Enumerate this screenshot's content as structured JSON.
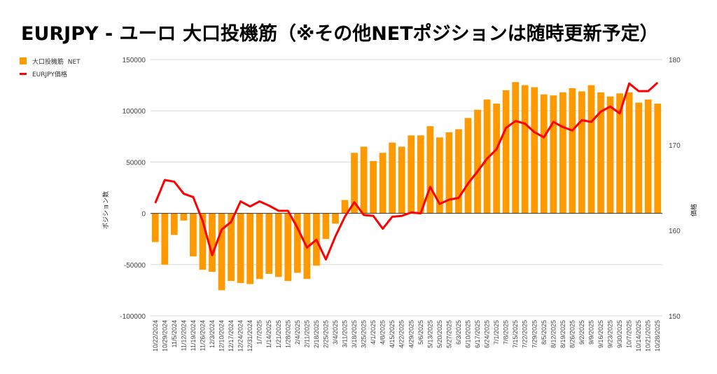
{
  "chart_data": {
    "type": "bar+line",
    "title": "EURJPY - ユーロ 大口投機筋（※その他NETポジションは随時更新予定）",
    "ylabel_left": "ポジション数",
    "ylabel_right": "価格",
    "ylim_left": [
      -100000,
      150000
    ],
    "ylim_right": [
      150,
      180
    ],
    "yticks_left": [
      "150000",
      "100000",
      "50000",
      "0",
      "-50000",
      "-100000"
    ],
    "yticks_right": [
      "180",
      "170",
      "160",
      "150"
    ],
    "grid": true,
    "legend_position": "top-left",
    "categories": [
      "10/22/2024",
      "10/29/2024",
      "11/5/2024",
      "11/12/2024",
      "11/19/2024",
      "11/26/2024",
      "12/3/2024",
      "12/10/2024",
      "12/17/2024",
      "12/24/2024",
      "12/31/2024",
      "1/7/2025",
      "1/14/2025",
      "1/21/2025",
      "1/28/2025",
      "2/4/2025",
      "2/11/2025",
      "2/18/2025",
      "2/25/2025",
      "3/4/2025",
      "3/11/2025",
      "3/18/2025",
      "3/25/2025",
      "4/1/2025",
      "4/8/2025",
      "4/15/2025",
      "4/22/2025",
      "4/29/2025",
      "5/6/2025",
      "5/13/2025",
      "5/20/2025",
      "5/27/2025",
      "6/3/2025",
      "6/10/2025",
      "6/17/2025",
      "6/24/2025",
      "7/1/2025",
      "7/8/2025",
      "7/15/2025",
      "7/22/2025",
      "7/29/2025",
      "8/5/2025",
      "8/12/2025",
      "8/19/2025",
      "8/26/2025",
      "9/2/2025",
      "9/9/2025",
      "9/16/2025",
      "9/23/2025",
      "9/30/2025",
      "10/7/2025",
      "10/14/2025",
      "10/21/2025",
      "10/28/2025"
    ],
    "series": [
      {
        "name": "大口投機筋  NET",
        "type": "bar",
        "axis": "left",
        "color": "#ff9900",
        "values": [
          -28000,
          -50000,
          -21000,
          -7000,
          -42000,
          -55000,
          -57000,
          -75000,
          -66000,
          -68000,
          -69000,
          -64000,
          -59000,
          -62000,
          -66000,
          -58000,
          -64000,
          -51000,
          -25000,
          -10000,
          13000,
          59000,
          65000,
          51000,
          59000,
          69000,
          65000,
          76000,
          76000,
          85000,
          74000,
          79000,
          82000,
          93000,
          101000,
          111000,
          107000,
          120000,
          128000,
          125000,
          123000,
          116000,
          115000,
          118000,
          122000,
          119000,
          125000,
          118000,
          114000,
          117000,
          118000,
          108000,
          111000,
          107000
        ]
      },
      {
        "name": "EURJPY価格",
        "type": "line",
        "axis": "right",
        "color": "#ff0000",
        "values": [
          163.2,
          165.9,
          165.7,
          164.3,
          163.9,
          161.1,
          157.1,
          160.1,
          161.0,
          163.4,
          162.8,
          163.4,
          162.9,
          162.3,
          162.3,
          160.3,
          158.0,
          158.9,
          156.6,
          159.3,
          161.6,
          163.3,
          161.8,
          161.7,
          160.2,
          161.6,
          161.7,
          162.1,
          162.0,
          165.1,
          163.1,
          163.6,
          163.8,
          165.5,
          166.9,
          168.4,
          169.5,
          172.0,
          172.8,
          172.5,
          171.5,
          170.9,
          172.7,
          172.1,
          171.7,
          172.9,
          172.7,
          173.9,
          174.5,
          173.7,
          177.2,
          176.3,
          176.3,
          177.3
        ]
      }
    ]
  }
}
